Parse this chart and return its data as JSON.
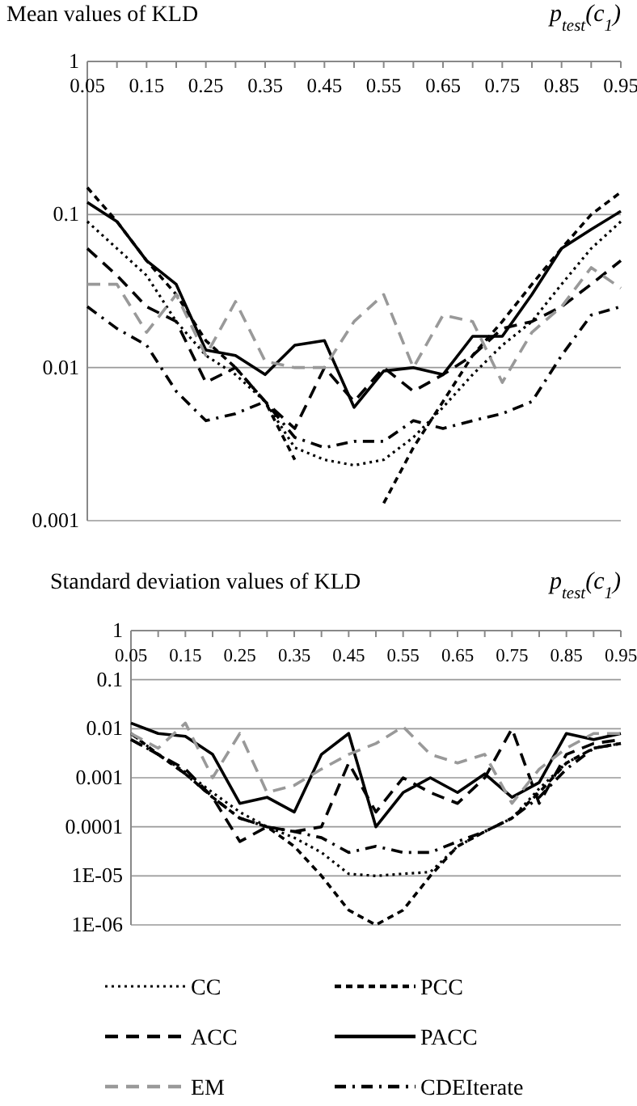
{
  "chart_data": [
    {
      "type": "line",
      "title": "Mean values of KLD",
      "xlabel": "p$_{test}$(c$_{1}$)",
      "log": "y",
      "grid": "y",
      "legend": false,
      "x": [
        0.05,
        0.1,
        0.15,
        0.2,
        0.25,
        0.3,
        0.35,
        0.4,
        0.45,
        0.5,
        0.55,
        0.6,
        0.65,
        0.7,
        0.75,
        0.8,
        0.85,
        0.9,
        0.95
      ],
      "xlim": [
        0.05,
        0.95
      ],
      "xticks": [
        0.05,
        {
          "value": 0.1,
          "label": null
        },
        0.15,
        {
          "value": 0.2,
          "label": null
        },
        0.25,
        {
          "value": 0.3,
          "label": null
        },
        0.35,
        {
          "value": 0.4,
          "label": null
        },
        0.45,
        {
          "value": 0.5,
          "label": null
        },
        0.55,
        {
          "value": 0.6,
          "label": null
        },
        0.65,
        {
          "value": 0.7,
          "label": null
        },
        0.75,
        {
          "value": 0.8,
          "label": null
        },
        0.85,
        {
          "value": 0.9,
          "label": null
        },
        0.95
      ],
      "ylim": [
        0.001,
        1
      ],
      "yticks": [
        0.001,
        0.01,
        0.1,
        1
      ],
      "series": [
        {
          "color": "#000000",
          "line_style": "dotted",
          "values": [
            0.09,
            0.06,
            0.04,
            0.02,
            0.012,
            0.009,
            0.006,
            0.003,
            0.0025,
            0.0023,
            0.0025,
            0.0035,
            0.0055,
            0.009,
            0.014,
            0.02,
            0.035,
            0.06,
            0.09
          ]
        },
        {
          "color": "#000000",
          "line_style": "dashed",
          "values": [
            0.15,
            0.09,
            0.05,
            0.03,
            0.015,
            0.01,
            0.006,
            0.0025,
            null,
            null,
            0.0013,
            0.003,
            0.006,
            0.012,
            0.02,
            0.035,
            0.06,
            0.1,
            0.14
          ]
        },
        {
          "color": "#000000",
          "line_style": "longdash",
          "values": [
            0.06,
            0.04,
            0.025,
            0.02,
            0.008,
            0.01,
            0.006,
            0.004,
            0.01,
            0.006,
            0.01,
            0.007,
            0.009,
            0.012,
            0.018,
            0.02,
            0.025,
            0.035,
            0.05
          ]
        },
        {
          "color": "#000000",
          "line_style": "solid",
          "values": [
            0.12,
            0.09,
            0.05,
            0.035,
            0.013,
            0.012,
            0.009,
            0.014,
            0.015,
            0.0055,
            0.0095,
            0.01,
            0.009,
            0.016,
            0.016,
            0.03,
            0.06,
            0.08,
            0.105
          ]
        },
        {
          "color": "#999999",
          "line_style": "longdash",
          "values": [
            0.035,
            0.035,
            0.017,
            0.03,
            0.012,
            0.027,
            0.011,
            0.01,
            0.01,
            0.02,
            0.03,
            0.01,
            0.022,
            0.02,
            0.008,
            0.017,
            0.025,
            0.045,
            0.033
          ]
        },
        {
          "color": "#000000",
          "line_style": "dashdot",
          "values": [
            0.025,
            0.018,
            0.014,
            0.007,
            0.0045,
            0.005,
            0.006,
            0.0035,
            0.003,
            0.0033,
            0.0033,
            0.0045,
            0.004,
            0.0045,
            0.005,
            0.006,
            0.012,
            0.022,
            0.025
          ]
        }
      ]
    },
    {
      "type": "line",
      "title": "Standard deviation values of KLD",
      "xlabel": "p$_{test}$(c$_{1}$)",
      "log": "y",
      "grid": "y",
      "legend": "bottom",
      "x": [
        0.05,
        0.1,
        0.15,
        0.2,
        0.25,
        0.3,
        0.35,
        0.4,
        0.45,
        0.5,
        0.55,
        0.6,
        0.65,
        0.7,
        0.75,
        0.8,
        0.85,
        0.9,
        0.95
      ],
      "xlim": [
        0.05,
        0.95
      ],
      "xticks": [
        0.05,
        {
          "value": 0.1,
          "label": null
        },
        0.15,
        {
          "value": 0.2,
          "label": null
        },
        0.25,
        {
          "value": 0.3,
          "label": null
        },
        0.35,
        {
          "value": 0.4,
          "label": null
        },
        0.45,
        {
          "value": 0.5,
          "label": null
        },
        0.55,
        {
          "value": 0.6,
          "label": null
        },
        0.65,
        {
          "value": 0.7,
          "label": null
        },
        0.75,
        {
          "value": 0.8,
          "label": null
        },
        0.85,
        {
          "value": 0.9,
          "label": null
        },
        0.95
      ],
      "ylim": [
        1e-06,
        1
      ],
      "yticks": [
        {
          "value": 1e-06,
          "label": "1E-06"
        },
        {
          "value": 1e-05,
          "label": "1E-05"
        },
        0.0001,
        0.001,
        0.01,
        0.1,
        1
      ],
      "series": [
        {
          "name": "CC",
          "color": "#000000",
          "line_style": "dotted",
          "values": [
            0.008,
            0.003,
            0.0013,
            0.0005,
            0.0002,
            0.0001,
            6e-05,
            3e-05,
            1.1e-05,
            1e-05,
            1.1e-05,
            1.2e-05,
            4e-05,
            8e-05,
            0.00015,
            0.0006,
            0.002,
            0.004,
            0.005
          ]
        },
        {
          "name": "PCC",
          "color": "#000000",
          "line_style": "dashed",
          "values": [
            0.008,
            0.003,
            0.0012,
            0.0004,
            0.00015,
            0.0001,
            4e-05,
            1e-05,
            2e-06,
            1e-06,
            2e-06,
            1e-05,
            4e-05,
            8e-05,
            0.00015,
            0.0005,
            0.002,
            0.004,
            0.005
          ]
        },
        {
          "name": "ACC",
          "color": "#000000",
          "line_style": "longdash",
          "values": [
            0.006,
            0.003,
            0.0015,
            0.0004,
            5e-05,
            0.0001,
            8e-05,
            0.0001,
            0.002,
            0.0002,
            0.001,
            0.0005,
            0.0003,
            0.001,
            0.01,
            0.0003,
            0.003,
            0.005,
            0.006
          ]
        },
        {
          "name": "PACC",
          "color": "#000000",
          "line_style": "solid",
          "values": [
            0.013,
            0.008,
            0.007,
            0.003,
            0.0003,
            0.0004,
            0.0002,
            0.003,
            0.008,
            0.0001,
            0.0005,
            0.001,
            0.0005,
            0.0012,
            0.0004,
            0.0008,
            0.008,
            0.006,
            0.008
          ]
        },
        {
          "name": "EM",
          "color": "#999999",
          "line_style": "longdash",
          "values": [
            0.008,
            0.004,
            0.013,
            0.001,
            0.008,
            0.0005,
            0.0007,
            0.0015,
            0.003,
            0.005,
            0.011,
            0.003,
            0.002,
            0.003,
            0.0003,
            0.0015,
            0.004,
            0.008,
            0.008
          ]
        },
        {
          "name": "CDEIterate",
          "color": "#000000",
          "line_style": "dashdot",
          "values": [
            0.006,
            0.003,
            0.0012,
            0.0004,
            0.00015,
            0.0001,
            8e-05,
            6e-05,
            3e-05,
            4e-05,
            3e-05,
            3e-05,
            5e-05,
            8e-05,
            0.00015,
            0.0004,
            0.0015,
            0.004,
            0.005
          ]
        }
      ]
    }
  ]
}
